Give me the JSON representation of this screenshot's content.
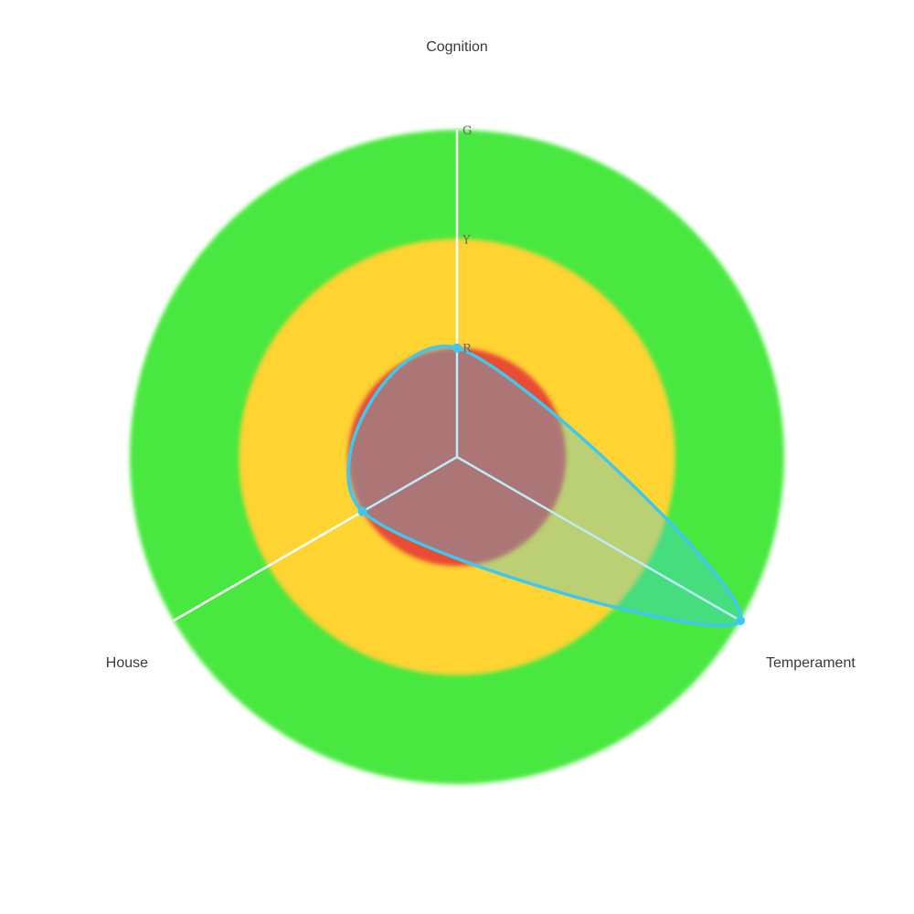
{
  "chart_data": {
    "type": "radar",
    "title": "",
    "axes": [
      "Cognition",
      "Temperament",
      "House"
    ],
    "rings": [
      {
        "label": "R",
        "value": 1,
        "color": "#e94b35"
      },
      {
        "label": "Y",
        "value": 2,
        "color": "#fed330"
      },
      {
        "label": "G",
        "value": 3,
        "color": "#4ae83f"
      }
    ],
    "range": [
      0,
      3
    ],
    "grid": false,
    "legend": "none",
    "series": [
      {
        "values": [
          1,
          3,
          1
        ],
        "line_color": "#3ec8f0",
        "fill_color": "rgba(62, 200, 240, 0.35)",
        "curve": "smooth"
      }
    ],
    "axis_line_color": "#ffffff"
  }
}
